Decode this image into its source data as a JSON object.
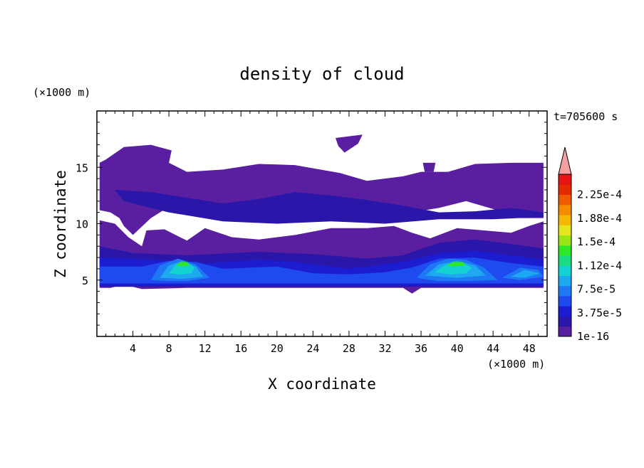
{
  "chart_data": {
    "type": "contour",
    "title": "density of cloud",
    "xlabel": "X coordinate",
    "ylabel": "Z coordinate",
    "x_unit": "(×1000 m)",
    "y_unit": "(×1000 m)",
    "time_label": "t=705600 s",
    "xlim": [
      0,
      50
    ],
    "ylim": [
      0,
      20
    ],
    "x_ticks": [
      4,
      8,
      12,
      16,
      20,
      24,
      28,
      32,
      36,
      40,
      44,
      48
    ],
    "y_ticks": [
      5,
      10,
      15
    ],
    "colorbar": {
      "labels": [
        "1e-16",
        "3.75e-5",
        "7.5e-5",
        "1.12e-4",
        "1.5e-4",
        "1.88e-4",
        "2.25e-4"
      ],
      "colors": [
        "#5a1fa0",
        "#2a16a8",
        "#1c1cd0",
        "#1f4af0",
        "#1e78f4",
        "#1ea8f0",
        "#14d2d2",
        "#19dc82",
        "#2ee62a",
        "#9ae614",
        "#e6e61e",
        "#f5b800",
        "#f58c00",
        "#f05a00",
        "#e62a00",
        "#e61414"
      ],
      "overflow_color": "#f4a0a0"
    },
    "regions": [
      {
        "level": 0,
        "points": [
          [
            0.3,
            11.2
          ],
          [
            1.5,
            11
          ],
          [
            2.5,
            10.5
          ],
          [
            3,
            9.8
          ],
          [
            4,
            9
          ],
          [
            6,
            10.5
          ],
          [
            8,
            11.5
          ],
          [
            10,
            11.8
          ],
          [
            13,
            11.3
          ],
          [
            16,
            10.6
          ],
          [
            20,
            10.8
          ],
          [
            24,
            11.2
          ],
          [
            28,
            11.6
          ],
          [
            32,
            11.4
          ],
          [
            35,
            11.0
          ],
          [
            38,
            11.4
          ],
          [
            41,
            12.0
          ],
          [
            44,
            11.3
          ],
          [
            47,
            10.5
          ],
          [
            49.6,
            10.5
          ],
          [
            49.6,
            15.4
          ],
          [
            46,
            15.4
          ],
          [
            42,
            15.3
          ],
          [
            39,
            14.6
          ],
          [
            36,
            14.6
          ],
          [
            34,
            14.2
          ],
          [
            30,
            13.8
          ],
          [
            27,
            14.5
          ],
          [
            22,
            15.2
          ],
          [
            18,
            15.3
          ],
          [
            14,
            14.8
          ],
          [
            10,
            14.6
          ],
          [
            8,
            15.4
          ],
          [
            8.3,
            16.5
          ],
          [
            6,
            17
          ],
          [
            3,
            16.8
          ],
          [
            1,
            15.7
          ],
          [
            0.3,
            15.4
          ]
        ]
      },
      {
        "level": 0,
        "points": [
          [
            0.3,
            10.3
          ],
          [
            2,
            10.0
          ],
          [
            3.5,
            8.8
          ],
          [
            5,
            8.0
          ],
          [
            5.5,
            9.4
          ],
          [
            7.5,
            9.5
          ],
          [
            10,
            8.5
          ],
          [
            12,
            9.6
          ],
          [
            15,
            8.8
          ],
          [
            18,
            8.6
          ],
          [
            22,
            9.0
          ],
          [
            26,
            9.6
          ],
          [
            30,
            9.6
          ],
          [
            33,
            9.8
          ],
          [
            35,
            9.2
          ],
          [
            37,
            8.7
          ],
          [
            40,
            9.6
          ],
          [
            43,
            9.4
          ],
          [
            46,
            9.2
          ],
          [
            48,
            9.8
          ],
          [
            49.6,
            10.2
          ],
          [
            49.6,
            4.3
          ],
          [
            48,
            4.3
          ],
          [
            40,
            4.3
          ],
          [
            36,
            4.3
          ],
          [
            35,
            3.8
          ],
          [
            34,
            4.3
          ],
          [
            30,
            4.3
          ],
          [
            25,
            4.3
          ],
          [
            23,
            4.3
          ],
          [
            20,
            4.3
          ],
          [
            17,
            4.3
          ],
          [
            14,
            4.3
          ],
          [
            10,
            4.3
          ],
          [
            5,
            4.2
          ],
          [
            3,
            4.6
          ],
          [
            1.5,
            4.3
          ],
          [
            0.3,
            4.3
          ]
        ]
      },
      {
        "level": 0,
        "points": [
          [
            26.5,
            17.6
          ],
          [
            29.5,
            17.9
          ],
          [
            29,
            17.1
          ],
          [
            27.5,
            16.3
          ],
          [
            26.8,
            16.9
          ]
        ]
      },
      {
        "level": 0,
        "points": [
          [
            36.2,
            15.4
          ],
          [
            37.6,
            15.4
          ],
          [
            37.4,
            14.6
          ],
          [
            36.4,
            14.6
          ]
        ]
      },
      {
        "level": 1,
        "points": [
          [
            2,
            13
          ],
          [
            6,
            12.8
          ],
          [
            10,
            12.3
          ],
          [
            14,
            11.8
          ],
          [
            18,
            12.2
          ],
          [
            22,
            12.8
          ],
          [
            26,
            12.5
          ],
          [
            30,
            12.1
          ],
          [
            34,
            11.6
          ],
          [
            38,
            11.0
          ],
          [
            42,
            11.1
          ],
          [
            46,
            11.4
          ],
          [
            49.6,
            11.0
          ],
          [
            49.6,
            10.6
          ],
          [
            44,
            10.4
          ],
          [
            38,
            10.4
          ],
          [
            32,
            10.0
          ],
          [
            26,
            10.2
          ],
          [
            20,
            10.0
          ],
          [
            14,
            10.2
          ],
          [
            8,
            11.0
          ],
          [
            3,
            12.0
          ]
        ]
      },
      {
        "level": 1,
        "points": [
          [
            0.3,
            8.0
          ],
          [
            4,
            7.4
          ],
          [
            10,
            7.2
          ],
          [
            18,
            7.5
          ],
          [
            24,
            7.3
          ],
          [
            30,
            6.9
          ],
          [
            34,
            7.2
          ],
          [
            38,
            8.3
          ],
          [
            42,
            8.6
          ],
          [
            46,
            8.2
          ],
          [
            49.6,
            7.8
          ],
          [
            49.6,
            4.4
          ],
          [
            0.3,
            4.4
          ]
        ]
      },
      {
        "level": 2,
        "points": [
          [
            0.3,
            7.0
          ],
          [
            6,
            6.8
          ],
          [
            12,
            6.5
          ],
          [
            18,
            6.8
          ],
          [
            22,
            6.6
          ],
          [
            28,
            6.0
          ],
          [
            34,
            6.6
          ],
          [
            38,
            7.4
          ],
          [
            42,
            7.6
          ],
          [
            46,
            7.2
          ],
          [
            49.6,
            6.8
          ],
          [
            49.6,
            4.5
          ],
          [
            0.3,
            4.5
          ]
        ]
      },
      {
        "level": 3,
        "points": [
          [
            0.3,
            6.2
          ],
          [
            5,
            6.2
          ],
          [
            8,
            6.7
          ],
          [
            11,
            6.6
          ],
          [
            14,
            6.0
          ],
          [
            20,
            6.2
          ],
          [
            24,
            5.6
          ],
          [
            28,
            5.5
          ],
          [
            32,
            5.7
          ],
          [
            35,
            6.1
          ],
          [
            38,
            6.9
          ],
          [
            42,
            7.0
          ],
          [
            46,
            6.5
          ],
          [
            49.6,
            6.2
          ],
          [
            49.6,
            4.7
          ],
          [
            0.3,
            4.7
          ]
        ]
      },
      {
        "level": 4,
        "points": [
          [
            6,
            5.0
          ],
          [
            7,
            6.3
          ],
          [
            9,
            6.9
          ],
          [
            11,
            6.4
          ],
          [
            12.5,
            5.2
          ],
          [
            10,
            4.9
          ],
          [
            8,
            4.9
          ]
        ]
      },
      {
        "level": 4,
        "points": [
          [
            35.5,
            5.2
          ],
          [
            37,
            6.4
          ],
          [
            39,
            6.9
          ],
          [
            41,
            6.8
          ],
          [
            43,
            6.1
          ],
          [
            44.5,
            5.0
          ],
          [
            41,
            4.9
          ],
          [
            38,
            4.9
          ]
        ]
      },
      {
        "level": 4,
        "points": [
          [
            45,
            5.2
          ],
          [
            47,
            6.1
          ],
          [
            49,
            5.9
          ],
          [
            49.6,
            5.3
          ],
          [
            47,
            5.0
          ]
        ]
      },
      {
        "level": 5,
        "points": [
          [
            7,
            5.2
          ],
          [
            8,
            6.3
          ],
          [
            9.5,
            6.7
          ],
          [
            11,
            6.2
          ],
          [
            11.8,
            5.3
          ],
          [
            9.5,
            5.1
          ]
        ]
      },
      {
        "level": 5,
        "points": [
          [
            36.5,
            5.4
          ],
          [
            38,
            6.4
          ],
          [
            40,
            6.7
          ],
          [
            42,
            6.3
          ],
          [
            43.2,
            5.4
          ],
          [
            40,
            5.2
          ]
        ]
      },
      {
        "level": 5,
        "points": [
          [
            46,
            5.3
          ],
          [
            47.5,
            5.9
          ],
          [
            49.2,
            5.6
          ],
          [
            47.5,
            5.2
          ]
        ]
      },
      {
        "level": 6,
        "points": [
          [
            8,
            5.6
          ],
          [
            8.8,
            6.4
          ],
          [
            10,
            6.6
          ],
          [
            10.8,
            6.1
          ],
          [
            10.5,
            5.6
          ],
          [
            9.2,
            5.5
          ]
        ]
      },
      {
        "level": 6,
        "points": [
          [
            37.5,
            5.7
          ],
          [
            38.8,
            6.4
          ],
          [
            40.5,
            6.6
          ],
          [
            41.6,
            6.1
          ],
          [
            41,
            5.6
          ],
          [
            39.2,
            5.5
          ]
        ]
      },
      {
        "level": 8,
        "points": [
          [
            8.8,
            6.3
          ],
          [
            9.3,
            6.6
          ],
          [
            10,
            6.6
          ],
          [
            10.3,
            6.3
          ],
          [
            9.5,
            6.2
          ]
        ]
      },
      {
        "level": 8,
        "points": [
          [
            38.8,
            6.3
          ],
          [
            39.6,
            6.6
          ],
          [
            40.7,
            6.6
          ],
          [
            40.9,
            6.3
          ],
          [
            39.8,
            6.2
          ]
        ]
      }
    ]
  }
}
